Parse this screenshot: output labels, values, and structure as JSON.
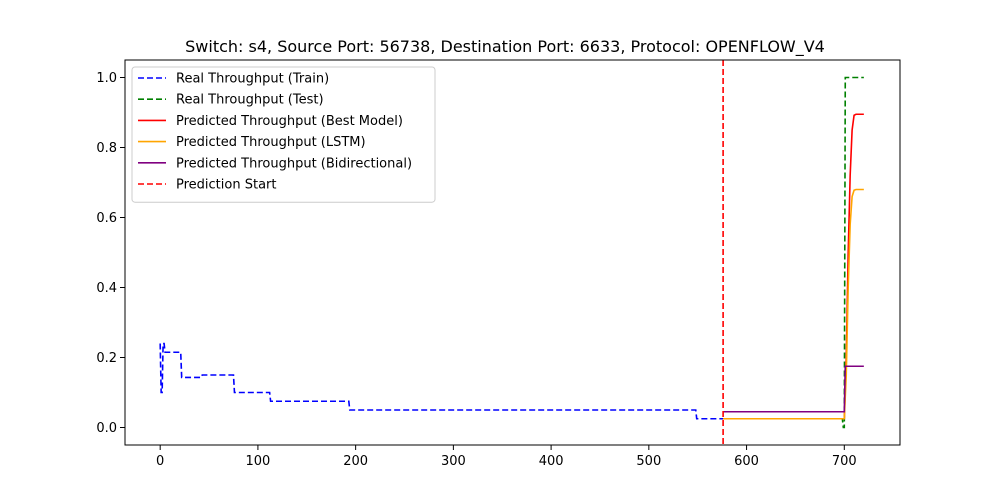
{
  "chart_data": {
    "type": "line",
    "title": "Switch: s4, Source Port: 56738, Destination Port: 6633, Protocol: OPENFLOW_V4",
    "xlabel": "",
    "ylabel": "",
    "xlim": [
      -36,
      757
    ],
    "ylim": [
      -0.05,
      1.05
    ],
    "xticks": [
      0,
      100,
      200,
      300,
      400,
      500,
      600,
      700
    ],
    "yticks": [
      0.0,
      0.2,
      0.4,
      0.6,
      0.8,
      1.0
    ],
    "xtick_labels": [
      "0",
      "100",
      "200",
      "300",
      "400",
      "500",
      "600",
      "700"
    ],
    "ytick_labels": [
      "0.0",
      "0.2",
      "0.4",
      "0.6",
      "0.8",
      "1.0"
    ],
    "grid": false,
    "legend_position": "top-left",
    "series": [
      {
        "name": "Real Throughput (Train)",
        "color": "#0000ff",
        "style": "dashed",
        "step": true,
        "points": [
          [
            0,
            0.24
          ],
          [
            1,
            0.1
          ],
          [
            2,
            0.1
          ],
          [
            3,
            0.24
          ],
          [
            4,
            0.24
          ],
          [
            5,
            0.215
          ],
          [
            21,
            0.215
          ],
          [
            22,
            0.143
          ],
          [
            42,
            0.143
          ],
          [
            43,
            0.15
          ],
          [
            75,
            0.15
          ],
          [
            76,
            0.1
          ],
          [
            112,
            0.1
          ],
          [
            113,
            0.075
          ],
          [
            193,
            0.075
          ],
          [
            194,
            0.05
          ],
          [
            548,
            0.05
          ],
          [
            549,
            0.025
          ],
          [
            576,
            0.025
          ]
        ]
      },
      {
        "name": "Real Throughput (Test)",
        "color": "#008000",
        "style": "dashed",
        "step": true,
        "points": [
          [
            576,
            0.025
          ],
          [
            698,
            0.025
          ],
          [
            699,
            0.0
          ],
          [
            700,
            0.0
          ],
          [
            701,
            1.0
          ],
          [
            720,
            1.0
          ]
        ]
      },
      {
        "name": "Predicted Throughput (Best Model)",
        "color": "#ff0000",
        "style": "solid",
        "step": false,
        "points": [
          [
            576,
            0.025
          ],
          [
            700,
            0.025
          ],
          [
            702,
            0.2
          ],
          [
            704,
            0.5
          ],
          [
            706,
            0.72
          ],
          [
            708,
            0.85
          ],
          [
            710,
            0.892
          ],
          [
            712,
            0.895
          ],
          [
            720,
            0.895
          ]
        ]
      },
      {
        "name": "Predicted Throughput (LSTM)",
        "color": "#ffa500",
        "style": "solid",
        "step": false,
        "points": [
          [
            576,
            0.025
          ],
          [
            700,
            0.025
          ],
          [
            702,
            0.15
          ],
          [
            704,
            0.4
          ],
          [
            706,
            0.58
          ],
          [
            708,
            0.66
          ],
          [
            710,
            0.678
          ],
          [
            712,
            0.68
          ],
          [
            720,
            0.68
          ]
        ]
      },
      {
        "name": "Predicted Throughput (Bidirectional)",
        "color": "#800080",
        "style": "solid",
        "step": false,
        "points": [
          [
            576,
            0.045
          ],
          [
            700,
            0.045
          ],
          [
            701,
            0.175
          ],
          [
            720,
            0.175
          ]
        ]
      },
      {
        "name": "Prediction Start",
        "color": "#ff0000",
        "style": "dashed",
        "vline": 576
      }
    ]
  }
}
